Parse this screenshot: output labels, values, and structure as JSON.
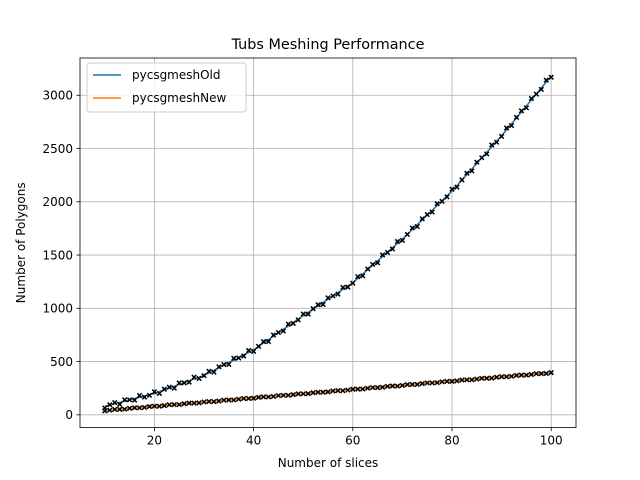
{
  "chart_data": {
    "type": "line",
    "title": "Tubs Meshing Performance",
    "xlabel": "Number of slices",
    "ylabel": "Number of Polygons",
    "xlim": [
      5,
      105
    ],
    "ylim": [
      -120,
      3350
    ],
    "xticks": [
      20,
      40,
      60,
      80,
      100
    ],
    "yticks": [
      0,
      500,
      1000,
      1500,
      2000,
      2500,
      3000
    ],
    "grid": true,
    "legend_position": "top-left",
    "series": [
      {
        "name": "pycsgmeshOld",
        "color": "#1f77b4",
        "x": [
          10,
          20,
          30,
          40,
          50,
          60,
          70,
          80,
          90,
          100
        ],
        "values": [
          80,
          200,
          370,
          610,
          930,
          1240,
          1650,
          2100,
          2620,
          3180
        ]
      },
      {
        "name": "pycsgmeshNew",
        "color": "#ff7f0e",
        "x": [
          10,
          100
        ],
        "values": [
          40,
          395
        ]
      }
    ],
    "scatter_marker": "x",
    "scatter_color": "#000000"
  }
}
